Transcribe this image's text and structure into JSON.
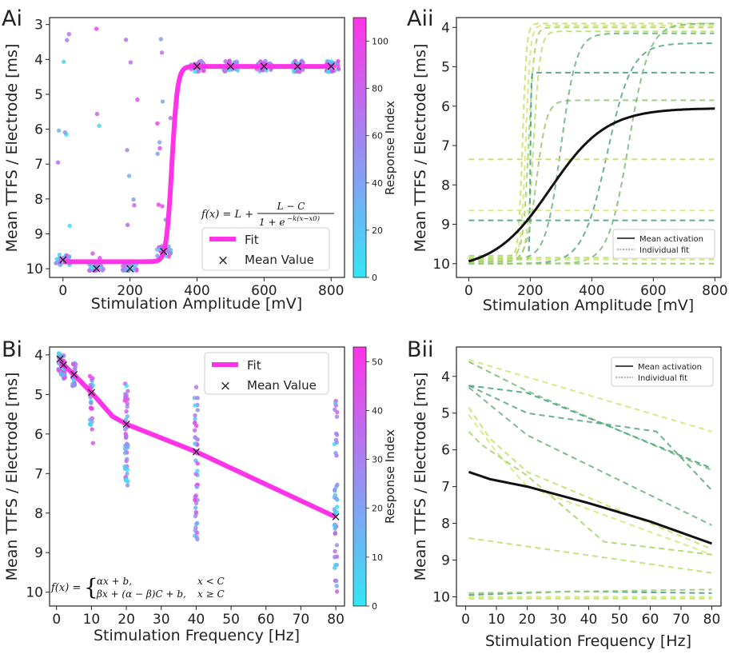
{
  "chart_data": [
    {
      "id": "Ai",
      "panel_label": "Ai",
      "type": "scatter",
      "xlabel": "Stimulation Amplitude [mV]",
      "ylabel": "Mean TTFS / Electrode [ms]",
      "xlim": [
        -40,
        840
      ],
      "ylim": [
        10.25,
        2.8
      ],
      "xticks": [
        0,
        200,
        400,
        600,
        800
      ],
      "yticks": [
        3,
        4,
        5,
        6,
        7,
        8,
        9,
        10
      ],
      "colorbar": {
        "label": "Response Index",
        "min": 0,
        "max": 110,
        "ticks": [
          0,
          20,
          40,
          60,
          80,
          100
        ],
        "low_color": "#33e6f5",
        "high_color": "#ff33e8"
      },
      "fit": {
        "model": "sigmoid",
        "L": 4.2,
        "C": 9.8,
        "k": 0.12,
        "x0": 325,
        "x_range": [
          0,
          800
        ],
        "color": "#ff33e8"
      },
      "formula": {
        "lhs": "f(x) = L +",
        "num": "L − C",
        "den": "1 + e",
        "exp": "−k(x−x0)"
      },
      "mean_values": {
        "x": [
          0,
          100,
          200,
          300,
          400,
          500,
          600,
          700,
          800
        ],
        "y": [
          9.75,
          10.0,
          10.0,
          9.5,
          4.2,
          4.2,
          4.2,
          4.2,
          4.2
        ]
      },
      "legend": {
        "position": "lower-right",
        "entries": [
          "Fit",
          "Mean Value"
        ]
      }
    },
    {
      "id": "Aii",
      "panel_label": "Aii",
      "type": "line",
      "xlabel": "Stimulation Amplitude [mV]",
      "ylabel": "Mean TTFS / Electrode [ms]",
      "xlim": [
        -40,
        820
      ],
      "ylim": [
        10.35,
        3.75
      ],
      "xticks": [
        0,
        200,
        400,
        600,
        800
      ],
      "yticks": [
        4,
        5,
        6,
        7,
        8,
        9,
        10
      ],
      "mean": {
        "name": "Mean activation",
        "L": 6.05,
        "C": 10.15,
        "k": 0.011,
        "x0": 265,
        "x_range": [
          0,
          800
        ]
      },
      "series": [
        {
          "L": 3.9,
          "C": 9.85,
          "k": 0.15,
          "x0": 175,
          "color": "#c8e070"
        },
        {
          "L": 3.95,
          "C": 9.9,
          "k": 0.13,
          "x0": 185,
          "color": "#d6e67a"
        },
        {
          "L": 4.0,
          "C": 9.8,
          "k": 0.11,
          "x0": 195,
          "color": "#a9d66b"
        },
        {
          "L": 4.1,
          "C": 9.95,
          "k": 0.09,
          "x0": 210,
          "color": "#bde070"
        },
        {
          "L": 5.15,
          "C": 9.9,
          "k": 0.8,
          "x0": 200,
          "color": "#4aa08a"
        },
        {
          "L": 5.85,
          "C": 9.95,
          "k": 0.06,
          "x0": 220,
          "color": "#9fc776"
        },
        {
          "L": 4.15,
          "C": 9.9,
          "k": 0.04,
          "x0": 300,
          "color": "#6fb582"
        },
        {
          "L": 4.4,
          "C": 10.0,
          "k": 0.025,
          "x0": 450,
          "color": "#5ea985"
        },
        {
          "L": 3.9,
          "C": 10.0,
          "k": 0.03,
          "x0": 520,
          "color": "#7fbf7e"
        },
        {
          "L": 7.35,
          "C": 7.35,
          "k": 0.1,
          "x0": 200,
          "color": "#c2de6f"
        },
        {
          "L": 8.65,
          "C": 8.65,
          "k": 0.1,
          "x0": 200,
          "color": "#d8e87a"
        },
        {
          "L": 8.9,
          "C": 8.9,
          "k": 0.1,
          "x0": 200,
          "color": "#4ca58b"
        },
        {
          "L": 9.85,
          "C": 9.85,
          "k": 0.1,
          "x0": 200,
          "color": "#b8dc6e"
        },
        {
          "L": 9.9,
          "C": 9.9,
          "k": 0.1,
          "x0": 200,
          "color": "#d0e676"
        },
        {
          "L": 10.0,
          "C": 10.0,
          "k": 0.1,
          "x0": 200,
          "color": "#9ccf6c"
        }
      ],
      "legend": {
        "position": "lower-right",
        "entries": [
          "Mean activation",
          "Individual fit"
        ]
      }
    },
    {
      "id": "Bi",
      "panel_label": "Bi",
      "type": "scatter",
      "xlabel": "Stimulation Frequency [Hz]",
      "ylabel": "Mean TTFS / Electrode [ms]",
      "xlim": [
        -2,
        82.5
      ],
      "ylim": [
        10.35,
        3.8
      ],
      "xticks": [
        0,
        10,
        20,
        30,
        40,
        50,
        60,
        70,
        80
      ],
      "yticks": [
        4,
        5,
        6,
        7,
        8,
        9,
        10
      ],
      "colorbar": {
        "label": "Response Index",
        "min": 0,
        "max": 53,
        "ticks": [
          0,
          10,
          20,
          30,
          40,
          50
        ],
        "low_color": "#33e6f5",
        "high_color": "#ff33e8"
      },
      "fit_line": {
        "x": [
          1,
          2,
          5,
          10,
          16,
          20,
          40,
          80
        ],
        "y": [
          4.1,
          4.25,
          4.5,
          4.95,
          5.55,
          5.75,
          6.45,
          8.1
        ]
      },
      "mean_values": {
        "x": [
          1,
          2,
          5,
          10,
          20,
          40,
          80
        ],
        "y": [
          4.1,
          4.25,
          4.5,
          4.95,
          5.75,
          6.45,
          8.1
        ]
      },
      "formula": {
        "lhs": "f(x) =",
        "row1": "αx + b,",
        "row1c": "x < C",
        "row2": "βx + (α − β)C + b,",
        "row2c": "x ≥ C"
      },
      "legend": {
        "position": "top-right",
        "entries": [
          "Fit",
          "Mean Value"
        ]
      }
    },
    {
      "id": "Bii",
      "panel_label": "Bii",
      "type": "line",
      "xlabel": "Stimulation Frequency [Hz]",
      "ylabel": "Mean TTFS / Electrode [ms]",
      "xlim": [
        -3,
        83
      ],
      "ylim": [
        10.25,
        3.2
      ],
      "xticks": [
        0,
        10,
        20,
        30,
        40,
        50,
        60,
        70,
        80
      ],
      "yticks": [
        4,
        5,
        6,
        7,
        8,
        9,
        10
      ],
      "mean": {
        "name": "Mean activation",
        "x": [
          1,
          8,
          20,
          40,
          60,
          80
        ],
        "y": [
          6.6,
          6.8,
          7.0,
          7.45,
          7.95,
          8.55
        ]
      },
      "series": [
        {
          "x": [
            1,
            80
          ],
          "y": [
            3.55,
            5.5
          ],
          "color": "#d6e67a"
        },
        {
          "x": [
            1,
            20,
            80
          ],
          "y": [
            3.6,
            4.4,
            6.55
          ],
          "color": "#7fbf7e"
        },
        {
          "x": [
            1,
            20,
            80
          ],
          "y": [
            4.25,
            4.45,
            6.5
          ],
          "color": "#4ca58b"
        },
        {
          "x": [
            1,
            20,
            62,
            80
          ],
          "y": [
            4.25,
            5.0,
            5.5,
            7.1
          ],
          "color": "#5ea985"
        },
        {
          "x": [
            1,
            20,
            80
          ],
          "y": [
            4.3,
            5.6,
            8.05
          ],
          "color": "#6fb582"
        },
        {
          "x": [
            1,
            8,
            20,
            80
          ],
          "y": [
            4.85,
            5.7,
            6.6,
            8.7
          ],
          "color": "#c8e070"
        },
        {
          "x": [
            1,
            10,
            20,
            80
          ],
          "y": [
            5.05,
            6.05,
            7.0,
            8.85
          ],
          "color": "#d8e87a"
        },
        {
          "x": [
            1,
            5,
            20,
            45,
            80
          ],
          "y": [
            5.5,
            5.85,
            6.7,
            8.5,
            8.85
          ],
          "color": "#a9d66b"
        },
        {
          "x": [
            1,
            80
          ],
          "y": [
            8.4,
            9.35
          ],
          "color": "#bde070"
        },
        {
          "x": [
            1,
            35,
            80
          ],
          "y": [
            9.95,
            9.85,
            9.9
          ],
          "color": "#4aa08a"
        },
        {
          "x": [
            1,
            80
          ],
          "y": [
            9.9,
            9.8
          ],
          "color": "#9fc776"
        },
        {
          "x": [
            1,
            80
          ],
          "y": [
            10.0,
            10.0
          ],
          "color": "#d0e676"
        },
        {
          "x": [
            1,
            80
          ],
          "y": [
            10.05,
            10.05
          ],
          "color": "#c2de6f"
        }
      ],
      "legend": {
        "position": "top-right",
        "entries": [
          "Mean activation",
          "Individual fit"
        ]
      }
    }
  ]
}
